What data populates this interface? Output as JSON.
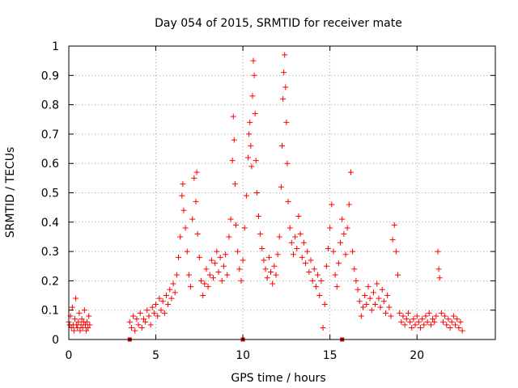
{
  "chart_data": {
    "type": "scatter",
    "title": "Day 054 of 2015, SRMTID for receiver mate",
    "xlabel": "GPS time / hours",
    "ylabel": "SRMTID / TECUs",
    "xlim": [
      0,
      24.5
    ],
    "ylim": [
      0,
      1
    ],
    "xticks": [
      0,
      5,
      10,
      15,
      20
    ],
    "xtick_labels": [
      "0",
      "5",
      "10",
      "15",
      "20"
    ],
    "yticks": [
      0,
      0.1,
      0.2,
      0.3,
      0.4,
      0.5,
      0.6,
      0.7,
      0.8,
      0.9,
      1
    ],
    "ytick_labels": [
      "0",
      "0.1",
      "0.2",
      "0.3",
      "0.4",
      "0.5",
      "0.6",
      "0.7",
      "0.8",
      "0.9",
      "1"
    ],
    "grid": true,
    "marker": "+",
    "color": "#ff0000",
    "series": [
      {
        "name": "SRMTID",
        "points": [
          [
            0.0,
            0.06
          ],
          [
            0.05,
            0.05
          ],
          [
            0.1,
            0.08
          ],
          [
            0.15,
            0.04
          ],
          [
            0.2,
            0.11
          ],
          [
            0.25,
            0.05
          ],
          [
            0.3,
            0.03
          ],
          [
            0.35,
            0.07
          ],
          [
            0.4,
            0.14
          ],
          [
            0.45,
            0.05
          ],
          [
            0.5,
            0.04
          ],
          [
            0.55,
            0.06
          ],
          [
            0.6,
            0.09
          ],
          [
            0.65,
            0.03
          ],
          [
            0.7,
            0.05
          ],
          [
            0.75,
            0.07
          ],
          [
            0.8,
            0.04
          ],
          [
            0.85,
            0.06
          ],
          [
            0.9,
            0.1
          ],
          [
            0.95,
            0.05
          ],
          [
            1.0,
            0.03
          ],
          [
            1.05,
            0.06
          ],
          [
            1.1,
            0.04
          ],
          [
            1.15,
            0.08
          ],
          [
            1.2,
            0.05
          ],
          [
            3.5,
            0.06
          ],
          [
            3.6,
            0.04
          ],
          [
            3.7,
            0.08
          ],
          [
            3.8,
            0.03
          ],
          [
            3.9,
            0.07
          ],
          [
            4.0,
            0.05
          ],
          [
            4.1,
            0.09
          ],
          [
            4.2,
            0.04
          ],
          [
            4.3,
            0.07
          ],
          [
            4.4,
            0.06
          ],
          [
            4.5,
            0.1
          ],
          [
            4.6,
            0.08
          ],
          [
            4.7,
            0.05
          ],
          [
            4.8,
            0.11
          ],
          [
            4.9,
            0.09
          ],
          [
            5.0,
            0.12
          ],
          [
            5.1,
            0.08
          ],
          [
            5.2,
            0.14
          ],
          [
            5.3,
            0.1
          ],
          [
            5.4,
            0.13
          ],
          [
            5.5,
            0.09
          ],
          [
            5.6,
            0.15
          ],
          [
            5.7,
            0.12
          ],
          [
            5.8,
            0.17
          ],
          [
            5.9,
            0.14
          ],
          [
            6.0,
            0.19
          ],
          [
            6.1,
            0.16
          ],
          [
            6.2,
            0.22
          ],
          [
            6.3,
            0.28
          ],
          [
            6.4,
            0.35
          ],
          [
            6.5,
            0.49
          ],
          [
            6.55,
            0.53
          ],
          [
            6.6,
            0.44
          ],
          [
            6.7,
            0.38
          ],
          [
            6.8,
            0.3
          ],
          [
            6.9,
            0.22
          ],
          [
            7.0,
            0.18
          ],
          [
            7.1,
            0.41
          ],
          [
            7.2,
            0.55
          ],
          [
            7.3,
            0.47
          ],
          [
            7.35,
            0.57
          ],
          [
            7.4,
            0.36
          ],
          [
            7.5,
            0.28
          ],
          [
            7.6,
            0.2
          ],
          [
            7.7,
            0.15
          ],
          [
            7.8,
            0.19
          ],
          [
            7.9,
            0.24
          ],
          [
            8.0,
            0.18
          ],
          [
            8.1,
            0.22
          ],
          [
            8.2,
            0.27
          ],
          [
            8.3,
            0.21
          ],
          [
            8.4,
            0.26
          ],
          [
            8.5,
            0.3
          ],
          [
            8.6,
            0.23
          ],
          [
            8.7,
            0.28
          ],
          [
            8.8,
            0.2
          ],
          [
            8.9,
            0.25
          ],
          [
            9.0,
            0.29
          ],
          [
            9.1,
            0.22
          ],
          [
            9.2,
            0.35
          ],
          [
            9.3,
            0.41
          ],
          [
            9.4,
            0.61
          ],
          [
            9.45,
            0.76
          ],
          [
            9.5,
            0.68
          ],
          [
            9.55,
            0.53
          ],
          [
            9.6,
            0.39
          ],
          [
            9.7,
            0.3
          ],
          [
            9.8,
            0.24
          ],
          [
            9.9,
            0.2
          ],
          [
            10.0,
            0.27
          ],
          [
            10.1,
            0.38
          ],
          [
            10.2,
            0.49
          ],
          [
            10.3,
            0.62
          ],
          [
            10.35,
            0.7
          ],
          [
            10.4,
            0.74
          ],
          [
            10.45,
            0.66
          ],
          [
            10.5,
            0.59
          ],
          [
            10.55,
            0.83
          ],
          [
            10.6,
            0.95
          ],
          [
            10.65,
            0.9
          ],
          [
            10.7,
            0.77
          ],
          [
            10.75,
            0.61
          ],
          [
            10.8,
            0.5
          ],
          [
            10.9,
            0.42
          ],
          [
            11.0,
            0.36
          ],
          [
            11.1,
            0.31
          ],
          [
            11.2,
            0.27
          ],
          [
            11.3,
            0.24
          ],
          [
            11.4,
            0.21
          ],
          [
            11.5,
            0.28
          ],
          [
            11.6,
            0.23
          ],
          [
            11.7,
            0.19
          ],
          [
            11.8,
            0.25
          ],
          [
            11.9,
            0.22
          ],
          [
            12.0,
            0.29
          ],
          [
            12.1,
            0.35
          ],
          [
            12.2,
            0.52
          ],
          [
            12.25,
            0.66
          ],
          [
            12.3,
            0.82
          ],
          [
            12.35,
            0.91
          ],
          [
            12.4,
            0.97
          ],
          [
            12.45,
            0.86
          ],
          [
            12.5,
            0.74
          ],
          [
            12.55,
            0.6
          ],
          [
            12.6,
            0.47
          ],
          [
            12.7,
            0.38
          ],
          [
            12.8,
            0.33
          ],
          [
            12.9,
            0.29
          ],
          [
            13.0,
            0.35
          ],
          [
            13.1,
            0.31
          ],
          [
            13.2,
            0.42
          ],
          [
            13.3,
            0.36
          ],
          [
            13.4,
            0.28
          ],
          [
            13.5,
            0.33
          ],
          [
            13.6,
            0.26
          ],
          [
            13.7,
            0.3
          ],
          [
            13.8,
            0.23
          ],
          [
            13.9,
            0.27
          ],
          [
            14.0,
            0.2
          ],
          [
            14.1,
            0.24
          ],
          [
            14.2,
            0.18
          ],
          [
            14.3,
            0.22
          ],
          [
            14.4,
            0.15
          ],
          [
            14.5,
            0.2
          ],
          [
            14.6,
            0.04
          ],
          [
            14.7,
            0.12
          ],
          [
            14.8,
            0.25
          ],
          [
            14.9,
            0.31
          ],
          [
            15.0,
            0.38
          ],
          [
            15.1,
            0.46
          ],
          [
            15.2,
            0.3
          ],
          [
            15.3,
            0.22
          ],
          [
            15.4,
            0.18
          ],
          [
            15.5,
            0.26
          ],
          [
            15.6,
            0.33
          ],
          [
            15.7,
            0.41
          ],
          [
            15.8,
            0.36
          ],
          [
            15.9,
            0.29
          ],
          [
            16.0,
            0.38
          ],
          [
            16.1,
            0.46
          ],
          [
            16.2,
            0.57
          ],
          [
            16.3,
            0.3
          ],
          [
            16.4,
            0.24
          ],
          [
            16.5,
            0.2
          ],
          [
            16.6,
            0.17
          ],
          [
            16.7,
            0.13
          ],
          [
            16.8,
            0.08
          ],
          [
            16.9,
            0.11
          ],
          [
            17.0,
            0.15
          ],
          [
            17.1,
            0.12
          ],
          [
            17.2,
            0.18
          ],
          [
            17.3,
            0.14
          ],
          [
            17.4,
            0.1
          ],
          [
            17.5,
            0.16
          ],
          [
            17.6,
            0.12
          ],
          [
            17.7,
            0.19
          ],
          [
            17.8,
            0.14
          ],
          [
            17.9,
            0.11
          ],
          [
            18.0,
            0.17
          ],
          [
            18.1,
            0.13
          ],
          [
            18.2,
            0.09
          ],
          [
            18.3,
            0.15
          ],
          [
            18.4,
            0.11
          ],
          [
            18.5,
            0.08
          ],
          [
            18.6,
            0.34
          ],
          [
            18.7,
            0.39
          ],
          [
            18.8,
            0.3
          ],
          [
            18.9,
            0.22
          ],
          [
            19.0,
            0.09
          ],
          [
            19.1,
            0.06
          ],
          [
            19.2,
            0.08
          ],
          [
            19.3,
            0.05
          ],
          [
            19.4,
            0.07
          ],
          [
            19.5,
            0.09
          ],
          [
            19.6,
            0.06
          ],
          [
            19.7,
            0.04
          ],
          [
            19.8,
            0.07
          ],
          [
            19.9,
            0.05
          ],
          [
            20.0,
            0.08
          ],
          [
            20.1,
            0.06
          ],
          [
            20.2,
            0.04
          ],
          [
            20.3,
            0.07
          ],
          [
            20.4,
            0.05
          ],
          [
            20.5,
            0.08
          ],
          [
            20.6,
            0.06
          ],
          [
            20.7,
            0.09
          ],
          [
            20.8,
            0.05
          ],
          [
            20.9,
            0.07
          ],
          [
            21.0,
            0.06
          ],
          [
            21.1,
            0.08
          ],
          [
            21.2,
            0.3
          ],
          [
            21.25,
            0.24
          ],
          [
            21.3,
            0.21
          ],
          [
            21.4,
            0.09
          ],
          [
            21.5,
            0.06
          ],
          [
            21.6,
            0.08
          ],
          [
            21.7,
            0.05
          ],
          [
            21.8,
            0.07
          ],
          [
            21.9,
            0.04
          ],
          [
            22.0,
            0.06
          ],
          [
            22.1,
            0.08
          ],
          [
            22.2,
            0.05
          ],
          [
            22.3,
            0.07
          ],
          [
            22.4,
            0.04
          ],
          [
            22.5,
            0.06
          ],
          [
            22.6,
            0.03
          ]
        ]
      }
    ],
    "gap_markers": [
      {
        "x": 3.5,
        "y": 0
      },
      {
        "x": 10.0,
        "y": 0
      },
      {
        "x": 15.7,
        "y": 0
      }
    ]
  }
}
